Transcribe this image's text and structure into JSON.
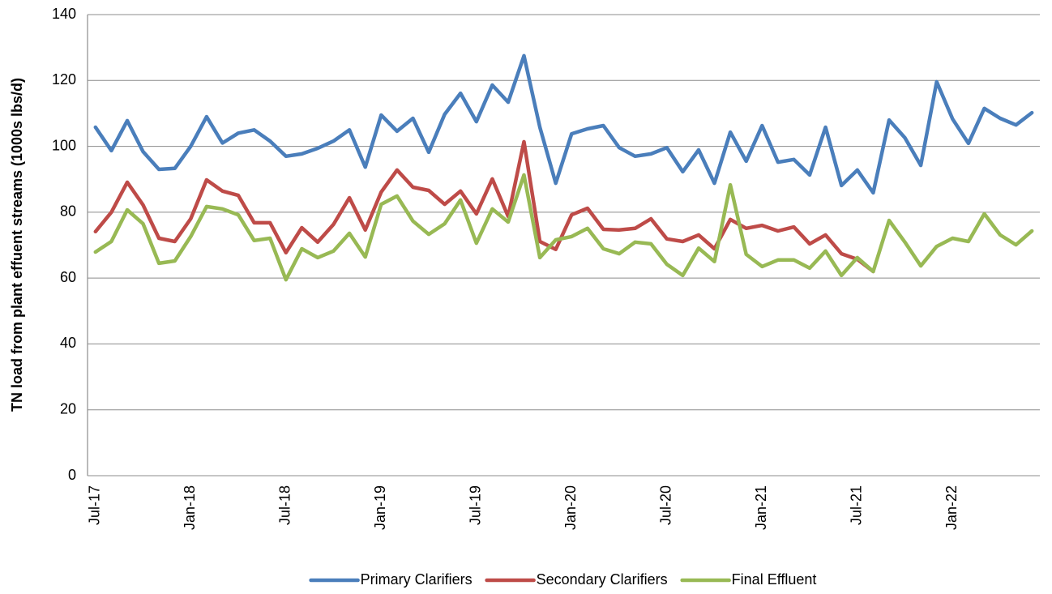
{
  "chart_data": {
    "type": "line",
    "y_label": "TN load from plant effuent streams (1000s lbs/d)",
    "categories": [
      "Jul-17",
      null,
      null,
      null,
      null,
      null,
      "Jan-18",
      null,
      null,
      null,
      null,
      null,
      "Jul-18",
      null,
      null,
      null,
      null,
      null,
      "Jan-19",
      null,
      null,
      null,
      null,
      null,
      "Jul-19",
      null,
      null,
      null,
      null,
      null,
      "Jan-20",
      null,
      null,
      null,
      null,
      null,
      "Jul-20",
      null,
      null,
      null,
      null,
      null,
      "Jan-21",
      null,
      null,
      null,
      null,
      null,
      "Jul-21",
      null,
      null,
      null,
      null,
      null,
      "Jan-22",
      null,
      null,
      null,
      null,
      null
    ],
    "series": [
      {
        "name": "Primary Clarifiers",
        "color": "#4a7ebb",
        "values": [
          105.8,
          98.7,
          107.8,
          98.4,
          93,
          93.3,
          100,
          109,
          101,
          104,
          105,
          101.6,
          97,
          97.7,
          99.4,
          101.6,
          105,
          93.7,
          109.5,
          104.6,
          108.5,
          98.2,
          109.7,
          116.1,
          107.5,
          118.6,
          113.4,
          127.5,
          105.8,
          88.8,
          103.8,
          105.3,
          106.3,
          99.6,
          97,
          97.7,
          99.6,
          92.3,
          98.9,
          88.8,
          104.3,
          95.5,
          106.3,
          95.2,
          96,
          91.3,
          105.8,
          88.1,
          92.8,
          85.9,
          108,
          102.6,
          94.2,
          119.6,
          108.3,
          100.9,
          111.5,
          108.5,
          106.5,
          110.2
        ]
      },
      {
        "name": "Secondary Clarifiers",
        "color": "#be4b48",
        "values": [
          74.1,
          80,
          89.1,
          82.2,
          72.1,
          71.1,
          78,
          89.8,
          86.4,
          85.1,
          76.8,
          76.8,
          67.7,
          75.3,
          70.9,
          76.3,
          84.4,
          74.6,
          86.1,
          92.8,
          87.6,
          86.6,
          82.4,
          86.4,
          79.5,
          90.1,
          78.7,
          101.4,
          71.1,
          68.7,
          79.2,
          81.2,
          74.8,
          74.6,
          75.1,
          78,
          71.9,
          71.1,
          73.1,
          68.9,
          77.8,
          75.1,
          76,
          74.3,
          75.5,
          70.4,
          73.1,
          67.4,
          65.7,
          62,
          null,
          null,
          null,
          null,
          null,
          null,
          null,
          null,
          null,
          null
        ]
      },
      {
        "name": "Final Effluent",
        "color": "#98b954",
        "values": [
          67.9,
          71.1,
          80.7,
          76.5,
          64.5,
          65.2,
          72.6,
          81.7,
          81,
          79.2,
          71.4,
          72.1,
          59.5,
          68.9,
          66.2,
          68.2,
          73.6,
          66.4,
          82.4,
          84.9,
          77.3,
          73.3,
          76.5,
          83.7,
          70.6,
          81,
          77,
          91.3,
          66.2,
          71.6,
          72.6,
          75.1,
          68.9,
          67.4,
          70.9,
          70.4,
          64.2,
          60.8,
          69.1,
          65,
          88.3,
          67.2,
          63.5,
          65.5,
          65.5,
          63,
          68.2,
          60.8,
          66.2,
          62,
          77.5,
          70.9,
          63.7,
          69.6,
          72.1,
          71.1,
          79.5,
          73.1,
          70.1,
          74.3
        ]
      }
    ],
    "ylim": [
      0,
      140
    ],
    "yticks": [
      0,
      20,
      40,
      60,
      80,
      100,
      120,
      140
    ],
    "grid": true,
    "legend": "bottom"
  }
}
